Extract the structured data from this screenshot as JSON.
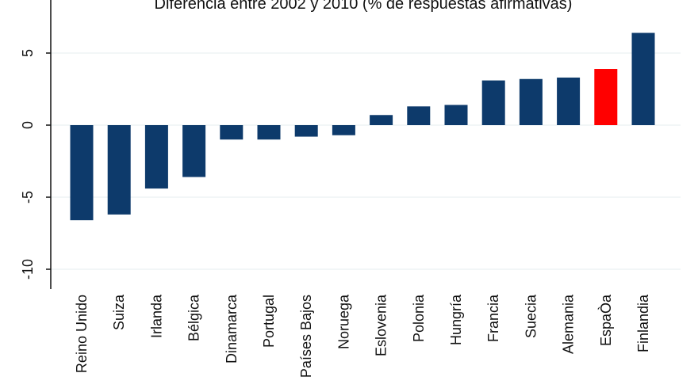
{
  "chart_data": {
    "type": "bar",
    "title": "Diferencia entre 2002 y 2010 (% de respuestas afirmativas)",
    "xlabel": "",
    "ylabel": "",
    "ylim": [
      -10.5,
      7
    ],
    "yticks": [
      5,
      0,
      -5,
      -10
    ],
    "ytick_labels": [
      "5",
      "0",
      "-5",
      "-10"
    ],
    "grid": true,
    "categories": [
      "Reino Unido",
      "Suiza",
      "Irlanda",
      "Bélgica",
      "Dinamarca",
      "Portugal",
      "Países Bajos",
      "Noruega",
      "Eslovenia",
      "Polonia",
      "Hungría",
      "Francia",
      "Suecia",
      "Alemania",
      "EspaÒa",
      "Finlandia"
    ],
    "values": [
      -6.6,
      -6.2,
      -4.4,
      -3.6,
      -1.0,
      -1.0,
      -0.8,
      -0.7,
      0.7,
      1.3,
      1.4,
      3.1,
      3.2,
      3.3,
      3.9,
      6.4
    ],
    "highlight": "EspaÒa",
    "colors": {
      "default": "#0d3a6b",
      "highlight": "#ff0000",
      "grid": "#e6ecef",
      "axis": "#111111"
    }
  }
}
